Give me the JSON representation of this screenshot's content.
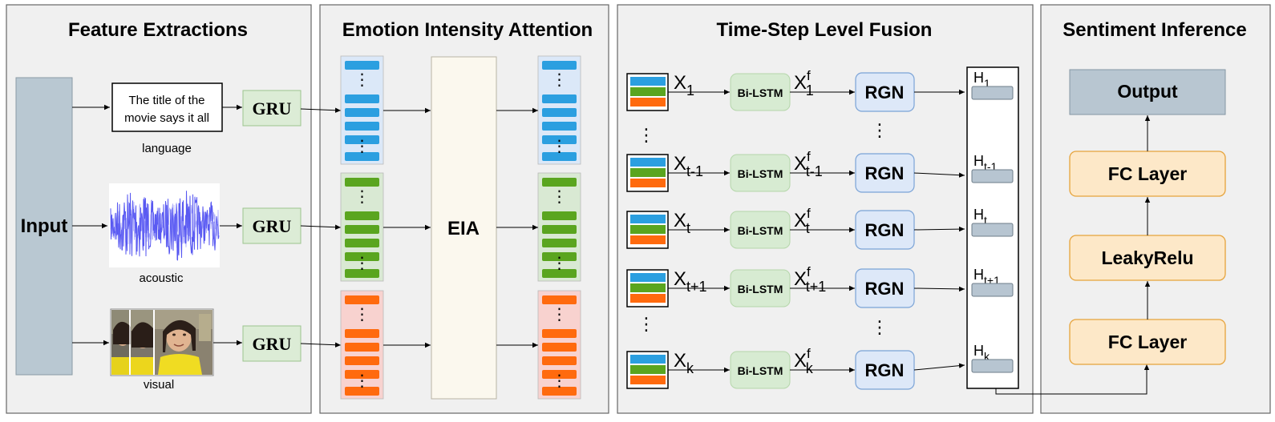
{
  "panels": {
    "feature": "Feature Extractions",
    "eia": "Emotion Intensity Attention",
    "fusion": "Time-Step Level Fusion",
    "inference": "Sentiment Inference"
  },
  "input_label": "Input",
  "gru_label": "GRU",
  "text_box": {
    "line1": "The title of the",
    "line2": "movie says it all"
  },
  "modalities": {
    "language": "language",
    "acoustic": "acoustic",
    "visual": "visual"
  },
  "eia_label": "EIA",
  "fusion": {
    "bilstm_label": "Bi-LSTM",
    "rgn_label": "RGN",
    "x_base": "X",
    "h_base": "H",
    "f_sup": "f",
    "rows": [
      {
        "sub": "1"
      },
      {
        "sub": "t-1"
      },
      {
        "sub": "t"
      },
      {
        "sub": "t+1"
      },
      {
        "sub": "k"
      }
    ]
  },
  "inference": {
    "output": "Output",
    "fc_top": "FC Layer",
    "leaky": "LeakyRelu",
    "fc_bottom": "FC Layer"
  },
  "colors": {
    "blue": "#2b9fe0",
    "green": "#5aa51f",
    "orange": "#ff6a0e",
    "blue_bg": "#dbe8f8",
    "green_bg": "#d9e9d3",
    "red_bg": "#f8d2cf",
    "input_fill": "#b9c8d2",
    "gru_fill": "#dcecd6",
    "bilstm_fill": "#d7ebd2",
    "rgn_fill": "#dde8f8",
    "h_fill": "#b7c5d1",
    "output_fill": "#b8c6d1",
    "layer_fill": "#fde8c8",
    "layer_stroke": "#e6a33b",
    "eia_fill": "#fbf8ee"
  }
}
